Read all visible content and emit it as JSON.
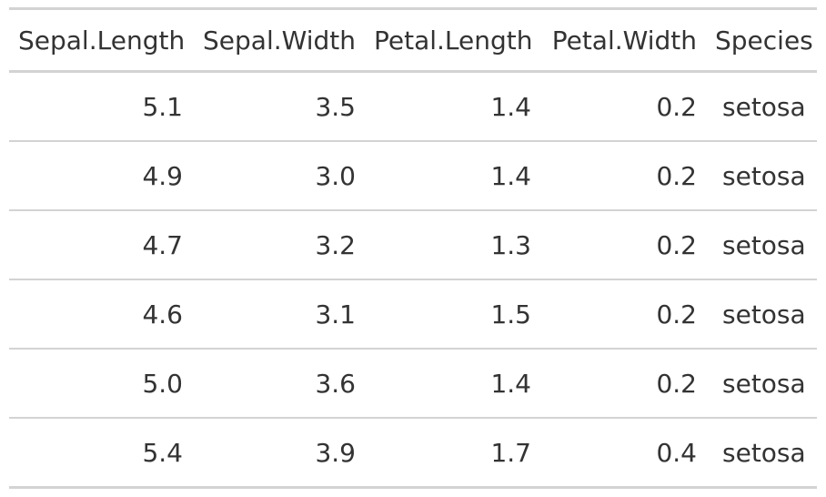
{
  "chart_data": {
    "type": "table",
    "columns": [
      "Sepal.Length",
      "Sepal.Width",
      "Petal.Length",
      "Petal.Width",
      "Species"
    ],
    "rows": [
      [
        "5.1",
        "3.5",
        "1.4",
        "0.2",
        "setosa"
      ],
      [
        "4.9",
        "3.0",
        "1.4",
        "0.2",
        "setosa"
      ],
      [
        "4.7",
        "3.2",
        "1.3",
        "0.2",
        "setosa"
      ],
      [
        "4.6",
        "3.1",
        "1.5",
        "0.2",
        "setosa"
      ],
      [
        "5.0",
        "3.6",
        "1.4",
        "0.2",
        "setosa"
      ],
      [
        "5.4",
        "3.9",
        "1.7",
        "0.4",
        "setosa"
      ]
    ]
  },
  "colors": {
    "text": "#333333",
    "rule": "#d3d3d3",
    "background": "#ffffff"
  }
}
